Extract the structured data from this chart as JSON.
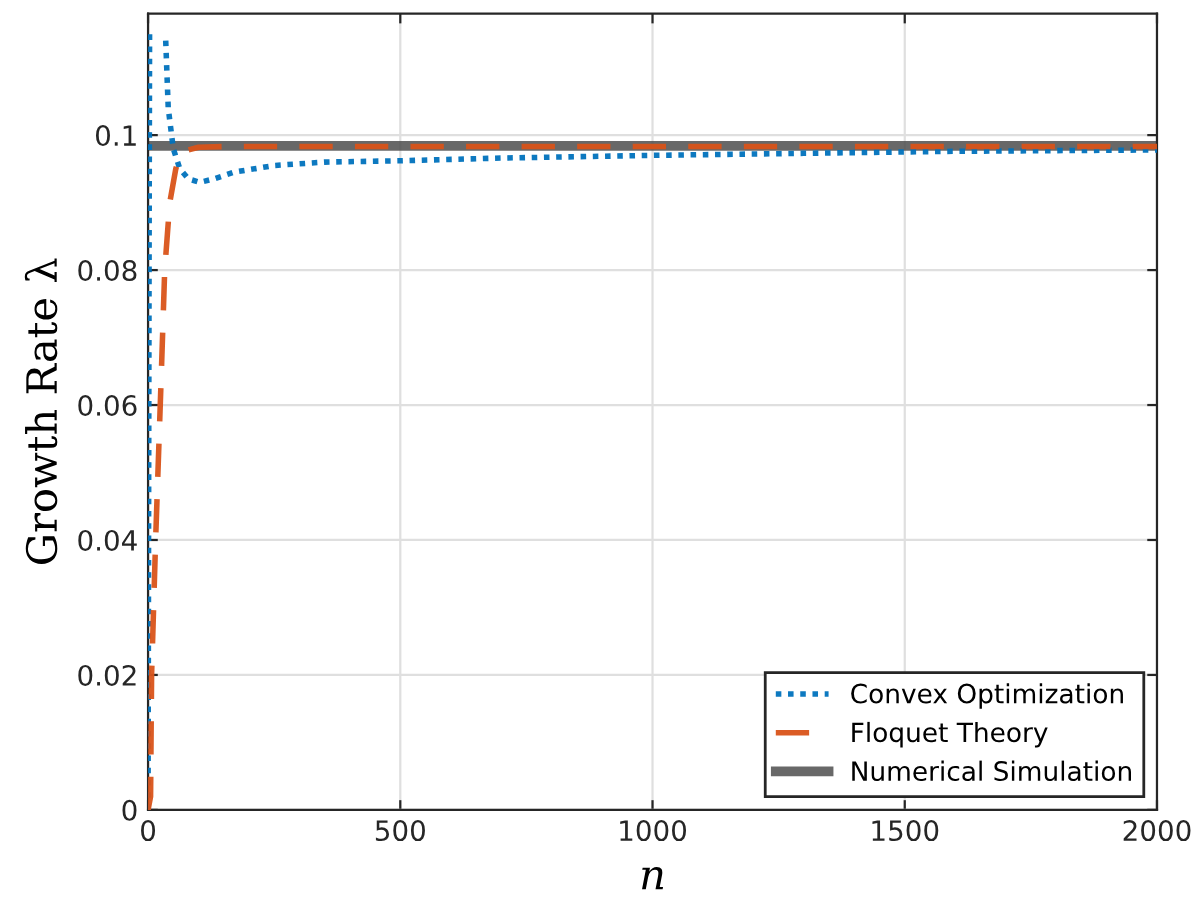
{
  "chart_data": {
    "type": "line",
    "xlabel": "n",
    "ylabel": "Growth Rate λ",
    "xlim": [
      0,
      2000
    ],
    "ylim": [
      0,
      0.118
    ],
    "xticks": [
      0,
      500,
      1000,
      1500,
      2000
    ],
    "yticks": [
      0,
      0.02,
      0.04,
      0.06,
      0.08,
      0.1
    ],
    "grid": true,
    "legend": "bottom right",
    "series": [
      {
        "name": "Convex Optimization",
        "color": "#0072bd",
        "line_style": "dotted",
        "x": [
          0,
          1,
          2,
          3,
          4,
          33,
          35,
          40,
          50,
          63,
          80,
          103,
          130,
          170,
          250,
          350,
          500,
          700,
          1000,
          1300,
          1600,
          2000
        ],
        "values": [
          0,
          0.04,
          0.08,
          0.115,
          null,
          null,
          0.114,
          0.104,
          0.098,
          0.095,
          0.0935,
          0.093,
          0.0935,
          0.0945,
          0.0955,
          0.096,
          0.0962,
          0.0966,
          0.097,
          0.0973,
          0.0976,
          0.0978
        ]
      },
      {
        "name": "Floquet Theory",
        "color": "#d95319",
        "line_style": "dashed",
        "x": [
          0,
          5,
          7,
          15,
          26,
          33,
          43,
          55,
          63,
          80,
          100,
          150,
          500,
          1000,
          2000
        ],
        "values": [
          0,
          0.002,
          0.02,
          0.04,
          0.064,
          0.08,
          0.09,
          0.095,
          0.097,
          0.0978,
          0.0982,
          0.0983,
          0.0983,
          0.0983,
          0.0983
        ]
      },
      {
        "name": "Numerical Simulation",
        "color": "#4d4d4d",
        "line_style": "solid",
        "x": [
          0,
          2000
        ],
        "values": [
          0.0984,
          0.0984
        ]
      }
    ]
  }
}
